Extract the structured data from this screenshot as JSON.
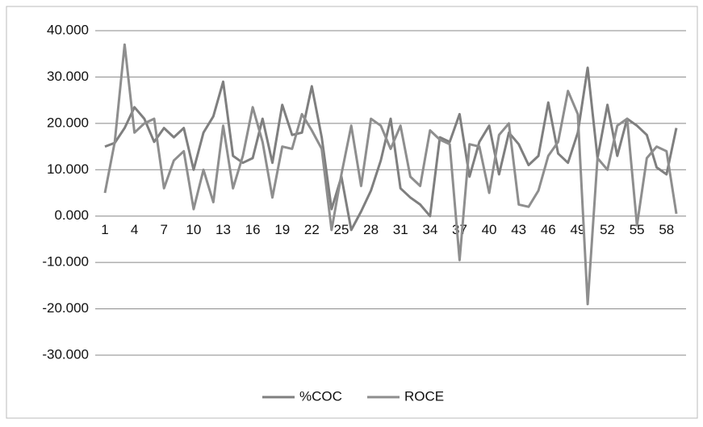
{
  "chart_data": {
    "type": "line",
    "categories": [
      "1",
      null,
      null,
      "4",
      null,
      null,
      "7",
      null,
      null,
      "10",
      null,
      null,
      "13",
      null,
      null,
      "16",
      null,
      null,
      "19",
      null,
      null,
      "22",
      null,
      null,
      "25",
      null,
      null,
      "28",
      null,
      null,
      "31",
      null,
      null,
      "34",
      null,
      null,
      "37",
      null,
      null,
      "40",
      null,
      null,
      "43",
      null,
      null,
      "46",
      null,
      null,
      "49",
      null,
      null,
      "52",
      null,
      null,
      "55",
      null,
      null,
      "58",
      null
    ],
    "series": [
      {
        "name": "%COC",
        "color": "#7f7f7f",
        "values": [
          15,
          15.8,
          19,
          23.5,
          21,
          16,
          19,
          17,
          19,
          10,
          18,
          21.5,
          29,
          13,
          11.5,
          12.5,
          21,
          11.5,
          24,
          17.5,
          18,
          28,
          17,
          1.5,
          8.5,
          -3,
          1,
          5.5,
          12,
          21,
          6,
          4,
          2.5,
          0,
          17,
          16,
          22,
          8.5,
          16,
          19.5,
          9,
          18,
          15.5,
          11,
          13,
          24.5,
          13.5,
          11.5,
          18,
          32,
          12.5,
          24,
          13,
          21,
          19.5,
          17.5,
          10.5,
          9,
          19
        ]
      },
      {
        "name": "ROCE",
        "color": "#8e8e8e",
        "values": [
          5,
          16,
          37,
          18,
          20,
          21,
          6,
          12,
          14,
          1.5,
          10,
          3,
          19.5,
          6,
          13,
          23.5,
          16,
          4,
          15,
          14.5,
          22,
          18.5,
          14.5,
          -3,
          9,
          19.5,
          6.5,
          21,
          19.5,
          14.5,
          19.5,
          8.5,
          6.5,
          18.5,
          16.5,
          15.5,
          -9.5,
          15.5,
          15,
          5,
          17.5,
          20,
          2.5,
          2,
          5.5,
          13,
          16,
          27,
          22,
          -19,
          12.5,
          10,
          19.5,
          21,
          -2,
          12.5,
          15,
          14,
          0.5
        ]
      }
    ],
    "ylim": [
      -30,
      40
    ],
    "yticks": [
      {
        "value": -30,
        "label": "-30.000"
      },
      {
        "value": -20,
        "label": "-20.000"
      },
      {
        "value": -10,
        "label": "-10.000"
      },
      {
        "value": 0,
        "label": "0.000"
      },
      {
        "value": 10,
        "label": "10.000"
      },
      {
        "value": 20,
        "label": "20.000"
      },
      {
        "value": 30,
        "label": "30.000"
      },
      {
        "value": 40,
        "label": "40.000"
      }
    ],
    "grid": true,
    "legend": "bottom"
  }
}
